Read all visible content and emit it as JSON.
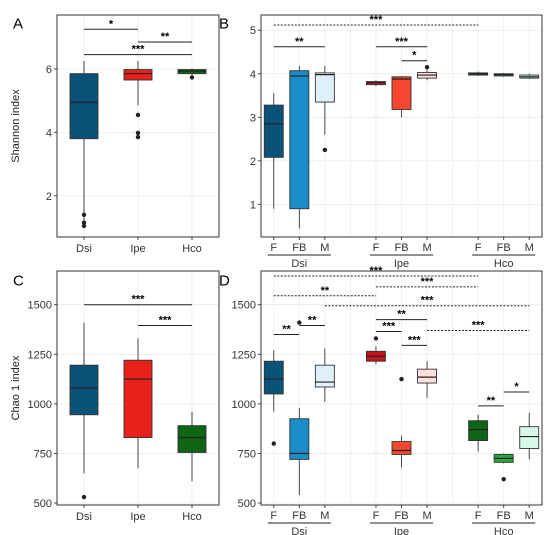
{
  "chart_data": [
    {
      "panel": "A",
      "type": "boxplot",
      "ylabel": "Shannon index",
      "ylim": [
        0.7,
        7.7
      ],
      "yticks": [
        2,
        4,
        6
      ],
      "categories": [
        "Dsi",
        "Ipe",
        "Hco"
      ],
      "boxes": [
        {
          "cat": "Dsi",
          "color": "#0b5279",
          "whislo": 1.0,
          "q1": 3.8,
          "med": 4.95,
          "q3": 5.85,
          "whishi": 6.25,
          "fliers": [
            1.4,
            1.15,
            1.05
          ]
        },
        {
          "cat": "Ipe",
          "color": "#e8221b",
          "whislo": 4.85,
          "q1": 5.65,
          "med": 5.85,
          "q3": 5.98,
          "whishi": 6.25,
          "fliers": [
            4.55,
            3.98,
            3.85
          ]
        },
        {
          "cat": "Hco",
          "color": "#0e6614",
          "whislo": 5.75,
          "q1": 5.85,
          "med": 5.93,
          "q3": 5.98,
          "whishi": 6.02,
          "fliers": [
            5.73
          ]
        }
      ],
      "sig": [
        {
          "label": "*",
          "from": 0,
          "to": 1,
          "y": 7.25,
          "dashed": false
        },
        {
          "label": "**",
          "from": 1,
          "to": 2,
          "y": 6.85,
          "dashed": false
        },
        {
          "label": "***",
          "from": 0,
          "to": 2,
          "y": 6.45,
          "dashed": false
        }
      ]
    },
    {
      "panel": "B",
      "type": "boxplot",
      "ylabel": "",
      "ylim": [
        0.25,
        5.35
      ],
      "yticks": [
        1,
        2,
        3,
        4,
        5
      ],
      "slots": 11,
      "xticks": [
        "F",
        "FB",
        "M",
        "F",
        "FB",
        "M",
        "F",
        "FB",
        "M"
      ],
      "groups": [
        {
          "name": "Dsi",
          "slots": [
            0,
            2
          ]
        },
        {
          "name": "Ipe",
          "slots": [
            4,
            6
          ]
        },
        {
          "name": "Hco",
          "slots": [
            8,
            10
          ]
        }
      ],
      "boxes": [
        {
          "slot": 0,
          "color": "#0b5279",
          "whislo": 0.9,
          "q1": 2.08,
          "med": 2.85,
          "q3": 3.28,
          "whishi": 3.55,
          "fliers": []
        },
        {
          "slot": 1,
          "color": "#1a8cc7",
          "whislo": 0.45,
          "q1": 0.9,
          "med": 3.95,
          "q3": 4.07,
          "whishi": 4.18,
          "fliers": []
        },
        {
          "slot": 2,
          "color": "#dff0fb",
          "whislo": 2.6,
          "q1": 3.35,
          "med": 3.98,
          "q3": 4.02,
          "whishi": 4.18,
          "fliers": [
            2.25
          ]
        },
        {
          "slot": 4,
          "color": "#c6141b",
          "whislo": 3.72,
          "q1": 3.75,
          "med": 3.8,
          "q3": 3.82,
          "whishi": 3.85,
          "fliers": []
        },
        {
          "slot": 5,
          "color": "#f5462f",
          "whislo": 3.0,
          "q1": 3.18,
          "med": 3.88,
          "q3": 3.93,
          "whishi": 3.95,
          "fliers": []
        },
        {
          "slot": 6,
          "color": "#fde0de",
          "whislo": 3.85,
          "q1": 3.9,
          "med": 3.97,
          "q3": 4.03,
          "whishi": 4.1,
          "fliers": [
            4.15
          ]
        },
        {
          "slot": 8,
          "color": "#0e6614",
          "whislo": 3.95,
          "q1": 3.97,
          "med": 4.0,
          "q3": 4.02,
          "whishi": 4.05,
          "fliers": []
        },
        {
          "slot": 9,
          "color": "#28a83a",
          "whislo": 3.93,
          "q1": 3.95,
          "med": 3.98,
          "q3": 4.0,
          "whishi": 4.02,
          "fliers": []
        },
        {
          "slot": 10,
          "color": "#d7f7e8",
          "whislo": 3.88,
          "q1": 3.9,
          "med": 3.93,
          "q3": 3.97,
          "whishi": 4.0,
          "fliers": []
        }
      ],
      "sig": [
        {
          "label": "***",
          "from": 0,
          "to": 8,
          "y": 5.12,
          "dashed": true
        },
        {
          "label": "**",
          "from": 0,
          "to": 2,
          "y": 4.62,
          "dashed": false
        },
        {
          "label": "***",
          "from": 4,
          "to": 6,
          "y": 4.62,
          "dashed": false
        },
        {
          "label": "*",
          "from": 5,
          "to": 6,
          "y": 4.3,
          "dashed": false
        }
      ]
    },
    {
      "panel": "C",
      "type": "boxplot",
      "ylabel": "Chao 1 index",
      "ylim": [
        490,
        1670
      ],
      "yticks": [
        500,
        750,
        1000,
        1250,
        1500
      ],
      "categories": [
        "Dsi",
        "Ipe",
        "Hco"
      ],
      "boxes": [
        {
          "cat": "Dsi",
          "color": "#0b5279",
          "whislo": 650,
          "q1": 945,
          "med": 1080,
          "q3": 1195,
          "whishi": 1410,
          "fliers": [
            530
          ]
        },
        {
          "cat": "Ipe",
          "color": "#e8221b",
          "whislo": 675,
          "q1": 830,
          "med": 1125,
          "q3": 1220,
          "whishi": 1330,
          "fliers": []
        },
        {
          "cat": "Hco",
          "color": "#0e6614",
          "whislo": 610,
          "q1": 755,
          "med": 830,
          "q3": 890,
          "whishi": 960,
          "fliers": []
        }
      ],
      "sig": [
        {
          "label": "***",
          "from": 0,
          "to": 2,
          "y": 1500,
          "dashed": false
        },
        {
          "label": "***",
          "from": 1,
          "to": 2,
          "y": 1395,
          "dashed": false
        }
      ]
    },
    {
      "panel": "D",
      "type": "boxplot",
      "ylabel": "",
      "ylim": [
        490,
        1670
      ],
      "yticks": [
        500,
        750,
        1000,
        1250,
        1500
      ],
      "slots": 11,
      "xticks": [
        "F",
        "FB",
        "M",
        "F",
        "FB",
        "M",
        "F",
        "FB",
        "M"
      ],
      "groups": [
        {
          "name": "Dsi",
          "slots": [
            0,
            2
          ]
        },
        {
          "name": "Ipe",
          "slots": [
            4,
            6
          ]
        },
        {
          "name": "Hco",
          "slots": [
            8,
            10
          ]
        }
      ],
      "boxes": [
        {
          "slot": 0,
          "color": "#0b5279",
          "whislo": 960,
          "q1": 1050,
          "med": 1125,
          "q3": 1215,
          "whishi": 1270,
          "fliers": [
            800
          ]
        },
        {
          "slot": 1,
          "color": "#1a8cc7",
          "whislo": 540,
          "q1": 720,
          "med": 750,
          "q3": 925,
          "whishi": 980,
          "fliers": [
            1410
          ]
        },
        {
          "slot": 2,
          "color": "#dff0fb",
          "whislo": 1010,
          "q1": 1085,
          "med": 1110,
          "q3": 1195,
          "whishi": 1280,
          "fliers": []
        },
        {
          "slot": 4,
          "color": "#c6141b",
          "whislo": 1200,
          "q1": 1215,
          "med": 1240,
          "q3": 1265,
          "whishi": 1290,
          "fliers": [
            1330
          ]
        },
        {
          "slot": 5,
          "color": "#f5462f",
          "whislo": 680,
          "q1": 745,
          "med": 765,
          "q3": 810,
          "whishi": 840,
          "fliers": [
            1125
          ]
        },
        {
          "slot": 6,
          "color": "#fde0de",
          "whislo": 1030,
          "q1": 1105,
          "med": 1135,
          "q3": 1175,
          "whishi": 1215,
          "fliers": []
        },
        {
          "slot": 8,
          "color": "#0e6614",
          "whislo": 760,
          "q1": 815,
          "med": 870,
          "q3": 915,
          "whishi": 945,
          "fliers": []
        },
        {
          "slot": 9,
          "color": "#28a83a",
          "whislo": 700,
          "q1": 705,
          "med": 725,
          "q3": 745,
          "whishi": 750,
          "fliers": [
            620
          ]
        },
        {
          "slot": 10,
          "color": "#d7f7e8",
          "whislo": 720,
          "q1": 775,
          "med": 835,
          "q3": 885,
          "whishi": 955,
          "fliers": []
        }
      ],
      "sig": [
        {
          "label": "***",
          "from": 0,
          "to": 8,
          "y": 1645,
          "dashed": true
        },
        {
          "label": "***",
          "from": 4,
          "to": 8,
          "y": 1590,
          "dashed": true
        },
        {
          "label": "**",
          "from": 0,
          "to": 4,
          "y": 1545,
          "dashed": true
        },
        {
          "label": "***",
          "from": 2,
          "to": 10,
          "y": 1495,
          "dashed": true
        },
        {
          "label": "**",
          "from": 0,
          "to": 1,
          "y": 1350,
          "dashed": false
        },
        {
          "label": "**",
          "from": 1,
          "to": 2,
          "y": 1395,
          "dashed": false
        },
        {
          "label": "***",
          "from": 4,
          "to": 5,
          "y": 1365,
          "dashed": false
        },
        {
          "label": "**",
          "from": 4,
          "to": 6,
          "y": 1425,
          "dashed": false
        },
        {
          "label": "***",
          "from": 6,
          "to": 10,
          "y": 1370,
          "dashed": true
        },
        {
          "label": "***",
          "from": 5,
          "to": 6,
          "y": 1295,
          "dashed": false
        },
        {
          "label": "**",
          "from": 8,
          "to": 9,
          "y": 990,
          "dashed": false
        },
        {
          "label": "*",
          "from": 9,
          "to": 10,
          "y": 1060,
          "dashed": false
        }
      ]
    }
  ]
}
